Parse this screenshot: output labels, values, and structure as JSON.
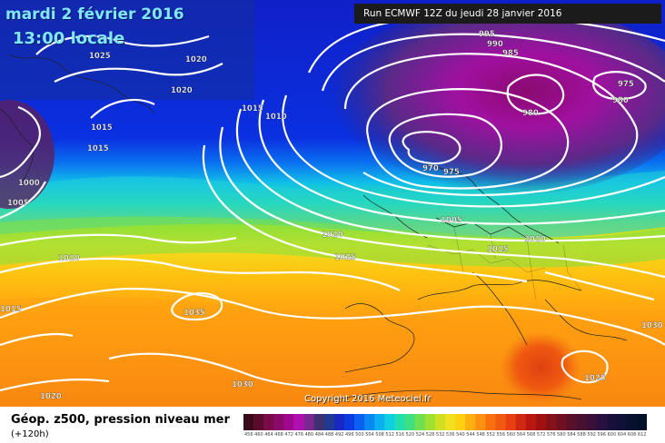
{
  "header": {
    "date": "mardi 2 février 2016",
    "time": "13:00 locale",
    "run": "Run ECMWF 12Z du jeudi 28 janvier 2016"
  },
  "footer": {
    "title": "Géop. z500, pression niveau mer",
    "subtitle": "(+120h)",
    "copyright": "Copyright 2016 Meteociel.fr"
  },
  "isobar_labels": [
    "1025",
    "1020",
    "1020",
    "1015",
    "1010",
    "1015",
    "1015",
    "1000",
    "1005",
    "1010",
    "1015",
    "995",
    "990",
    "985",
    "975",
    "980",
    "980",
    "970",
    "975",
    "1005",
    "1020",
    "1025",
    "1015",
    "1010",
    "1035",
    "1030",
    "1030",
    "1025",
    "1020"
  ],
  "scale": {
    "values": [
      "456",
      "460",
      "464",
      "468",
      "472",
      "476",
      "480",
      "484",
      "488",
      "492",
      "496",
      "500",
      "504",
      "508",
      "512",
      "516",
      "520",
      "524",
      "528",
      "532",
      "536",
      "540",
      "544",
      "548",
      "552",
      "556",
      "560",
      "564",
      "568",
      "572",
      "576",
      "580",
      "584",
      "588",
      "592",
      "596",
      "600",
      "604",
      "608",
      "612"
    ],
    "colors": [
      "#3a0a1a",
      "#5a0a2a",
      "#7a0a4a",
      "#8a0a6a",
      "#a00890",
      "#b010b0",
      "#7a2890",
      "#403070",
      "#203a90",
      "#1828c0",
      "#0a3ae0",
      "#0a60f0",
      "#0a8af0",
      "#0ab0f0",
      "#10d0e0",
      "#20e0b0",
      "#40e080",
      "#70e050",
      "#a0e030",
      "#d0e020",
      "#f0e020",
      "#ffd010",
      "#ffb010",
      "#ff9010",
      "#f87010",
      "#f05a10",
      "#e84010",
      "#d02810",
      "#b81810",
      "#a01010",
      "#881018",
      "#701020",
      "#5a1028",
      "#4a1030",
      "#3a1038",
      "#2a1040",
      "#1a1040",
      "#101038",
      "#081030",
      "#001028"
    ]
  }
}
